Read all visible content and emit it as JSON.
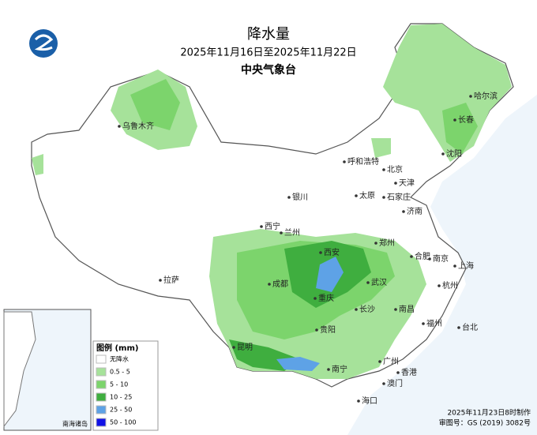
{
  "header": {
    "title": "降水量",
    "period": "2025年11月16日至2025年11月22日",
    "agency": "中央气象台"
  },
  "cities": [
    "乌鲁木齐",
    "哈尔滨",
    "长春",
    "沈阳",
    "呼和浩特",
    "北京",
    "天津",
    "银川",
    "太原",
    "石家庄",
    "济南",
    "西宁",
    "兰州",
    "郑州",
    "西安",
    "合肥",
    "南京",
    "上海",
    "成都",
    "武汉",
    "杭州",
    "重庆",
    "拉萨",
    "长沙",
    "南昌",
    "福州",
    "贵阳",
    "台北",
    "昆明",
    "南宁",
    "广州",
    "香港",
    "澳门",
    "海口"
  ],
  "legend": {
    "title": "图例 (mm)",
    "items": [
      {
        "label": "无降水",
        "color": "#ffffff"
      },
      {
        "label": "0.5 - 5",
        "color": "#a6e29a"
      },
      {
        "label": "5 - 10",
        "color": "#7cd46c"
      },
      {
        "label": "10 - 25",
        "color": "#3fae3f"
      },
      {
        "label": "25 - 50",
        "color": "#5ea2e6"
      },
      {
        "label": "50 - 100",
        "color": "#1212e6"
      }
    ]
  },
  "inset": {
    "label": "南海诸岛"
  },
  "footer": {
    "made": "2025年11月23日8时制作",
    "approval": "审图号：GS (2019) 3082号"
  }
}
